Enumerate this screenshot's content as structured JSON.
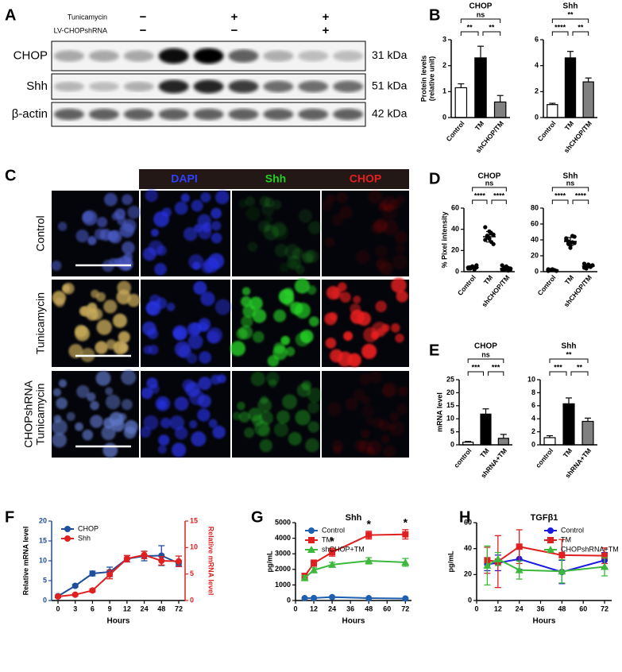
{
  "panels": [
    "A",
    "B",
    "C",
    "D",
    "E",
    "F",
    "G",
    "H"
  ],
  "blot": {
    "treatments": [
      {
        "name": "Tunicamycin",
        "signs": [
          "−",
          "+",
          "+"
        ]
      },
      {
        "name": "LV-CHOPshRNA",
        "signs": [
          "−",
          "−",
          "+"
        ]
      }
    ],
    "rows": [
      {
        "name": "CHOP",
        "size": "31 kDa"
      },
      {
        "name": "Shh",
        "size": "51 kDa"
      },
      {
        "name": "β-actin",
        "size": "42 kDa"
      }
    ]
  },
  "imaging": {
    "channels": [
      "DAPI",
      "Shh",
      "CHOP"
    ],
    "rows": [
      [
        "Control"
      ],
      [
        "Tunicamycin"
      ],
      [
        "CHOPshRNA",
        "Tunicamycin"
      ]
    ]
  },
  "chart_data": [
    {
      "type": "bar",
      "title": "CHOP",
      "y_label": [
        "Protein levels",
        "(relative unit)"
      ],
      "categories": [
        "Control",
        "TM",
        "shCHOP/TM"
      ],
      "values": [
        1.15,
        2.3,
        0.6
      ],
      "errors": [
        0.15,
        0.45,
        0.25
      ],
      "colors": [
        "#ffffff",
        "#000000",
        "#808080"
      ],
      "ylim": [
        0,
        3
      ],
      "yticks": [
        0,
        1,
        2,
        3
      ],
      "annotations": [
        "ns",
        "**",
        "**"
      ]
    },
    {
      "type": "bar",
      "title": "Shh",
      "categories": [
        "Control",
        "TM",
        "shCHOP/TM"
      ],
      "values": [
        1.0,
        4.6,
        2.75
      ],
      "errors": [
        0.1,
        0.5,
        0.3
      ],
      "colors": [
        "#ffffff",
        "#000000",
        "#808080"
      ],
      "ylim": [
        0,
        6
      ],
      "yticks": [
        0,
        2,
        4,
        6
      ],
      "annotations": [
        "**",
        "****",
        "**"
      ]
    },
    {
      "type": "dotplot",
      "title": "CHOP",
      "y_label": "% Pixel intensity",
      "categories": [
        "Control",
        "TM",
        "shCHOP/TM"
      ],
      "values": [
        4,
        33,
        3
      ],
      "errors": [
        1.5,
        5,
        1.8
      ],
      "points": [
        [
          3,
          4,
          5,
          2,
          6,
          4,
          3,
          5,
          4,
          4
        ],
        [
          30,
          34,
          38,
          28,
          26,
          42,
          33,
          31,
          36,
          35
        ],
        [
          2,
          4,
          5,
          1,
          3,
          6,
          2,
          4,
          3,
          2
        ]
      ],
      "ylim": [
        0,
        60
      ],
      "yticks": [
        0,
        20,
        40,
        60
      ],
      "annotations": [
        "ns",
        "****",
        "****"
      ]
    },
    {
      "type": "dotplot",
      "title": "Shh",
      "categories": [
        "Control",
        "TM",
        "shCHOP/TM"
      ],
      "values": [
        2,
        38,
        7
      ],
      "errors": [
        0.8,
        5,
        2
      ],
      "points": [
        [
          1,
          2,
          3,
          2,
          1,
          3,
          2,
          2
        ],
        [
          42,
          38,
          30,
          45,
          36,
          40,
          35,
          33,
          37,
          44
        ],
        [
          5,
          7,
          9,
          6,
          8,
          10,
          4,
          7,
          6,
          8
        ]
      ],
      "ylim": [
        0,
        80
      ],
      "yticks": [
        0,
        20,
        40,
        60,
        80
      ],
      "annotations": [
        "ns",
        "****",
        "****"
      ]
    },
    {
      "type": "bar",
      "title": "CHOP",
      "y_label": "mRNA level",
      "categories": [
        "control",
        "TM",
        "shRNA+TM"
      ],
      "values": [
        1,
        11.8,
        2.5
      ],
      "errors": [
        0.3,
        2,
        1.5
      ],
      "colors": [
        "#ffffff",
        "#000000",
        "#808080"
      ],
      "ylim": [
        0,
        25
      ],
      "yticks": [
        0,
        5,
        10,
        15,
        20,
        25
      ],
      "annotations": [
        "ns",
        "***",
        "***"
      ]
    },
    {
      "type": "bar",
      "title": "Shh",
      "categories": [
        "control",
        "TM",
        "shRNA+TM"
      ],
      "values": [
        1.1,
        6.3,
        3.6
      ],
      "errors": [
        0.3,
        0.9,
        0.5
      ],
      "colors": [
        "#ffffff",
        "#000000",
        "#808080"
      ],
      "ylim": [
        0,
        10
      ],
      "yticks": [
        0,
        2,
        4,
        6,
        8,
        10
      ],
      "annotations": [
        "**",
        "***",
        "**"
      ]
    },
    {
      "type": "line",
      "y_label": "Relative mRNA level",
      "y2_label": "Relative mRNA level",
      "x_label": "Hours",
      "categories": [
        "0",
        "3",
        "6",
        "9",
        "12",
        "24",
        "48",
        "72"
      ],
      "series": [
        {
          "name": "CHOP",
          "color": "#1f4e9c",
          "marker": "circle",
          "values": [
            1.1,
            3.7,
            6.8,
            7.2,
            10.5,
            11.2,
            11.3,
            9.4
          ],
          "errors": [
            0.2,
            0.3,
            0.6,
            1.2,
            0.8,
            1.2,
            2.5,
            0.6
          ]
        },
        {
          "name": "Shh",
          "color": "#e02020",
          "marker": "circle",
          "axis": "y2",
          "values": [
            0.75,
            1.1,
            1.9,
            4.9,
            7.9,
            8.6,
            7.5,
            7.4
          ],
          "errors": [
            0.2,
            0.2,
            0.3,
            0.8,
            0.6,
            0.7,
            0.8,
            1.0
          ]
        }
      ],
      "ylim": [
        0,
        20
      ],
      "yticks": [
        0,
        5,
        10,
        15,
        20
      ],
      "y_color": "#1f4e9c",
      "y2lim": [
        0,
        15
      ],
      "y2ticks": [
        0,
        5,
        10,
        15
      ],
      "y2_color": "#e02020",
      "legend": "upper left"
    },
    {
      "type": "line",
      "title": "Shh",
      "y_label": "pg/mL",
      "x_label": "Hours",
      "x": [
        6,
        12,
        24,
        48,
        72
      ],
      "series": [
        {
          "name": "Control",
          "color": "#1f5fb0",
          "marker": "circle",
          "values": [
            150,
            160,
            220,
            150,
            130
          ],
          "errors": [
            20,
            20,
            30,
            20,
            20
          ]
        },
        {
          "name": "TM",
          "color": "#e02020",
          "marker": "square",
          "values": [
            1550,
            2400,
            3100,
            4200,
            4250
          ],
          "errors": [
            200,
            200,
            250,
            250,
            300
          ]
        },
        {
          "name": "shCHOP+TM",
          "color": "#3cb83c",
          "marker": "triangle",
          "values": [
            1450,
            1950,
            2300,
            2550,
            2450
          ],
          "errors": [
            150,
            150,
            150,
            200,
            250
          ]
        }
      ],
      "xlim": [
        0,
        76
      ],
      "xticks": [
        0,
        12,
        24,
        36,
        48,
        60,
        72
      ],
      "ylim": [
        0,
        5000
      ],
      "yticks": [
        0,
        1000,
        2000,
        3000,
        4000,
        5000
      ],
      "legend": "upper left",
      "annotations": [
        "*",
        "*",
        "*"
      ]
    },
    {
      "type": "line",
      "title": "TGFβ1",
      "y_label": "pg/mL",
      "x_label": "Hours",
      "x": [
        6,
        12,
        24,
        48,
        72
      ],
      "series": [
        {
          "name": "Control",
          "color": "#1a1ae0",
          "marker": "circle",
          "values": [
            28,
            29,
            32,
            22,
            31
          ],
          "errors": [
            5,
            6,
            8,
            9,
            6
          ]
        },
        {
          "name": "TM",
          "color": "#e02020",
          "marker": "square",
          "values": [
            31,
            30,
            41.5,
            35,
            34.5
          ],
          "errors": [
            10,
            20,
            13,
            12,
            6
          ]
        },
        {
          "name": "CHOPshRNA+TM",
          "color": "#3cb83c",
          "marker": "triangle",
          "values": [
            27,
            32,
            23.5,
            22.5,
            26
          ],
          "errors": [
            15,
            5,
            7,
            9,
            7
          ]
        }
      ],
      "xlim": [
        0,
        76
      ],
      "xticks": [
        0,
        12,
        24,
        36,
        48,
        60,
        72
      ],
      "ylim": [
        0,
        60
      ],
      "yticks": [
        0,
        20,
        40,
        60
      ],
      "legend": "upper right"
    }
  ]
}
